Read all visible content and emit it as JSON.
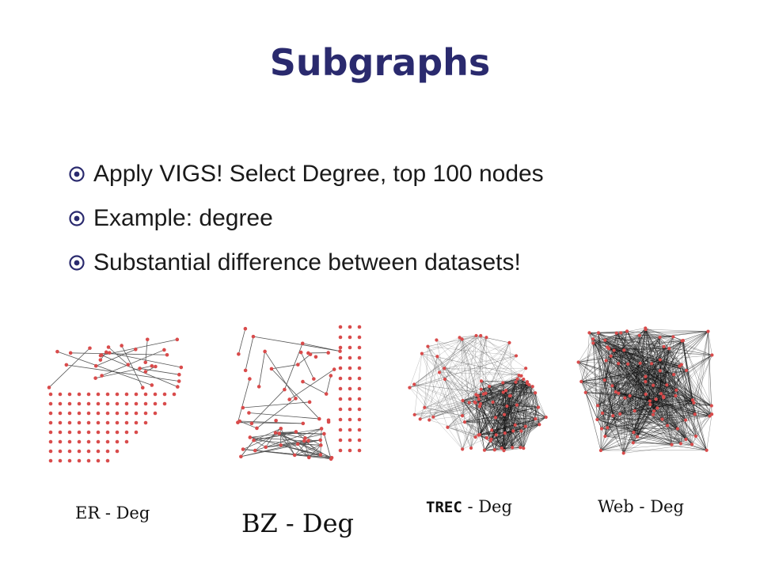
{
  "slide": {
    "title": "Subgraphs",
    "bullets": [
      "Apply VIGS! Select Degree, top 100 nodes",
      "Example: degree",
      "Substantial difference between datasets!"
    ],
    "bullet_icon": "circled-dot-icon",
    "accent_color": "#2a2a6e",
    "node_color": "#d94b4b"
  },
  "graphs": [
    {
      "caption": "ER - Deg"
    },
    {
      "caption": "BZ - Deg"
    },
    {
      "caption_mono": "TREC",
      "caption_rest": " - Deg"
    },
    {
      "caption": "Web - Deg"
    }
  ]
}
